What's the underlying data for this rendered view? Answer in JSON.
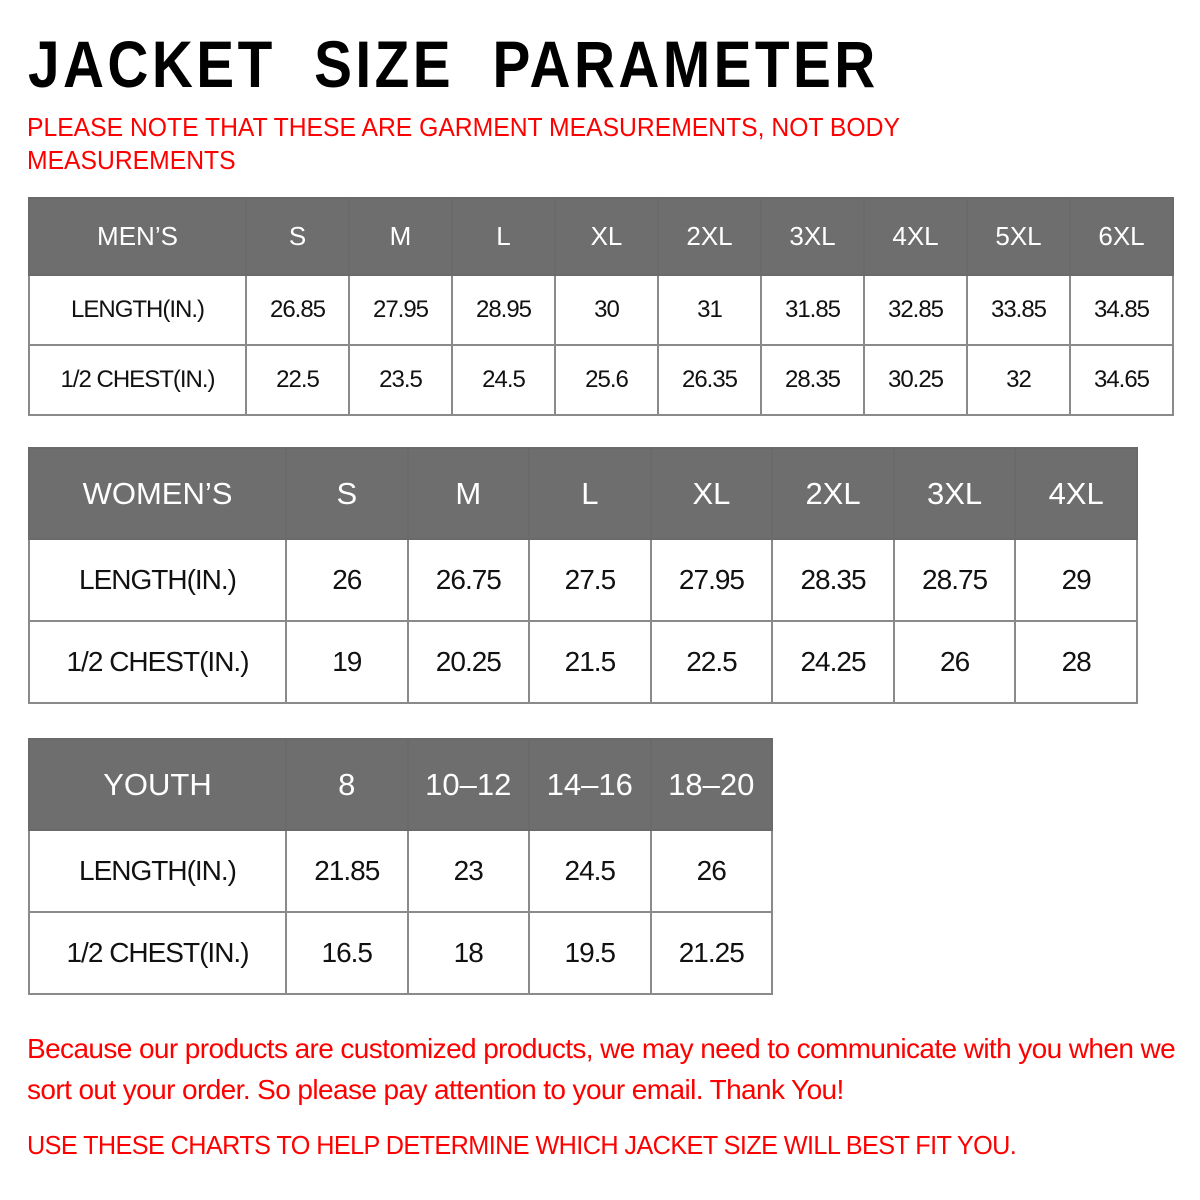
{
  "title": "JACKET  SIZE  PARAMETER",
  "note": "PLEASE NOTE THAT THESE ARE GARMENT MEASUREMENTS, NOT BODY MEASUREMENTS",
  "colors": {
    "header_bg": "#6e6e6e",
    "accent_red": "#ff0000"
  },
  "tables": {
    "men": {
      "header": [
        "MEN’S",
        "S",
        "M",
        "L",
        "XL",
        "2XL",
        "3XL",
        "4XL",
        "5XL",
        "6XL"
      ],
      "rows": [
        [
          "LENGTH(IN.)",
          "26.85",
          "27.95",
          "28.95",
          "30",
          "31",
          "31.85",
          "32.85",
          "33.85",
          "34.85"
        ],
        [
          "1/2 CHEST(IN.)",
          "22.5",
          "23.5",
          "24.5",
          "25.6",
          "26.35",
          "28.35",
          "30.25",
          "32",
          "34.65"
        ]
      ]
    },
    "women": {
      "header": [
        "WOMEN’S",
        "S",
        "M",
        "L",
        "XL",
        "2XL",
        "3XL",
        "4XL"
      ],
      "rows": [
        [
          "LENGTH(IN.)",
          "26",
          "26.75",
          "27.5",
          "27.95",
          "28.35",
          "28.75",
          "29"
        ],
        [
          "1/2 CHEST(IN.)",
          "19",
          "20.25",
          "21.5",
          "22.5",
          "24.25",
          "26",
          "28"
        ]
      ]
    },
    "youth": {
      "header": [
        "YOUTH",
        "8",
        "10–12",
        "14–16",
        "18–20"
      ],
      "rows": [
        [
          "LENGTH(IN.)",
          "21.85",
          "23",
          "24.5",
          "26"
        ],
        [
          "1/2 CHEST(IN.)",
          "16.5",
          "18",
          "19.5",
          "21.25"
        ]
      ]
    }
  },
  "footer": {
    "message": "Because our products are customized products, we may need to communicate with you when we sort out your order. So please pay attention to your email. Thank You!",
    "instruction": "USE THESE CHARTS TO HELP DETERMINE WHICH JACKET SIZE WILL BEST FIT YOU."
  }
}
